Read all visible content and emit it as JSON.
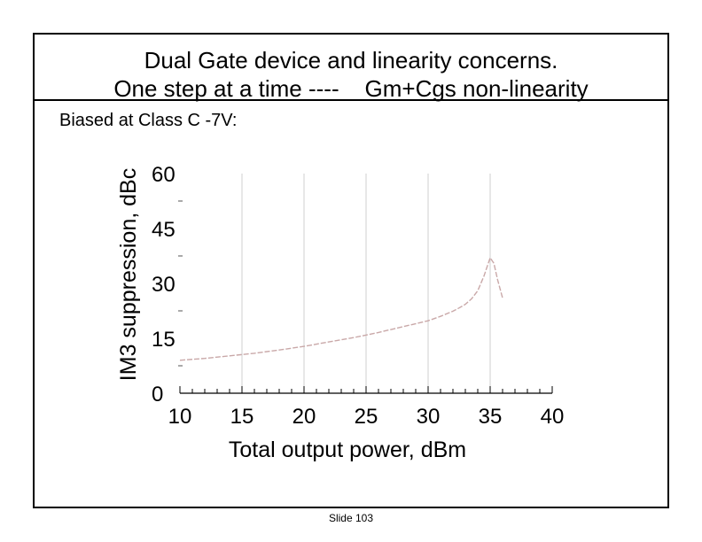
{
  "slide": {
    "title_line1": "Dual Gate device and linearity concerns.",
    "title_line2": "One step at a time ----    Gm+Cgs non-linearity",
    "subtitle": "Biased at Class C -7V:",
    "footer": "Slide 103"
  },
  "colors": {
    "series": "#c9a8a8",
    "grid": "#cfcfcf",
    "axis": "#000000"
  },
  "chart_data": {
    "type": "line",
    "title": "",
    "xlabel": "Total output power, dBm",
    "ylabel": "IM3 suppression, dBc",
    "xlim": [
      10,
      40
    ],
    "ylim": [
      0,
      60
    ],
    "x_ticks": [
      10,
      15,
      20,
      25,
      30,
      35,
      40
    ],
    "y_ticks": [
      0,
      15,
      30,
      45,
      60
    ],
    "x_tick_labels": [
      "10",
      "15",
      "20",
      "25",
      "30",
      "35",
      "40"
    ],
    "y_tick_labels": [
      "0",
      "15",
      "30",
      "45",
      "60"
    ],
    "x_minor_step": 1,
    "grid": true,
    "series": [
      {
        "name": "IM3 suppression",
        "x": [
          10,
          12,
          14,
          16,
          18,
          20,
          22,
          24,
          26,
          28,
          30,
          31,
          32,
          32.5,
          33,
          33.5,
          34,
          34.5,
          34.8,
          35,
          35.3,
          35.6,
          36
        ],
        "y": [
          9,
          9.5,
          10.2,
          10.9,
          11.8,
          12.8,
          14,
          15.2,
          16.6,
          18.2,
          19.8,
          21,
          22.4,
          23.3,
          24.3,
          25.8,
          28,
          32,
          35,
          37,
          35.5,
          31,
          26
        ]
      }
    ]
  }
}
